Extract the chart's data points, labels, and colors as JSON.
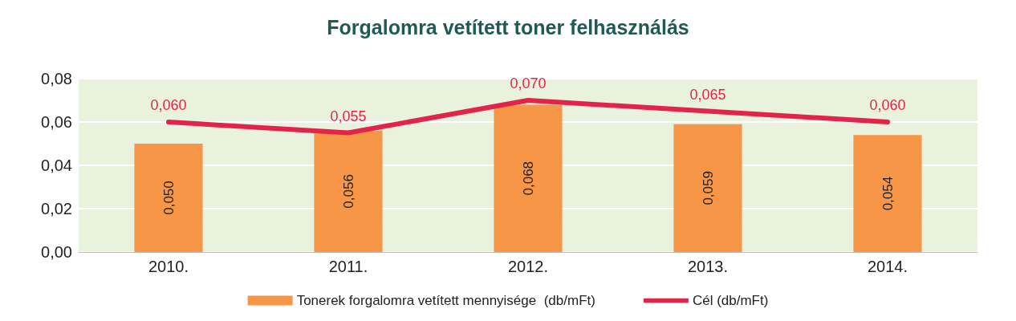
{
  "chart_data": {
    "type": "bar",
    "title": "Forgalomra vetített toner felhasználás",
    "categories": [
      "2010.",
      "2011.",
      "2012.",
      "2013.",
      "2014."
    ],
    "series": [
      {
        "name": "Tonerek forgalomra vetített mennyisége  (db/mFt)",
        "color": "#f79646",
        "values": [
          0.05,
          0.056,
          0.068,
          0.059,
          0.054
        ],
        "value_labels": [
          "0,050",
          "0,056",
          "0,068",
          "0,059",
          "0,054"
        ]
      },
      {
        "name": "Cél (db/mFt)",
        "type": "line",
        "color": "#e3234a",
        "values": [
          0.06,
          0.055,
          0.07,
          0.065,
          0.06
        ],
        "value_labels": [
          "0,060",
          "0,055",
          "0,070",
          "0,065",
          "0,060"
        ]
      }
    ],
    "ylim": [
      0,
      0.08
    ],
    "yticks": [
      {
        "value": 0,
        "label": "0,00"
      },
      {
        "value": 0.02,
        "label": "0,02"
      },
      {
        "value": 0.04,
        "label": "0,04"
      },
      {
        "value": 0.06,
        "label": "0,06"
      },
      {
        "value": 0.08,
        "label": "0,08"
      }
    ],
    "grid": "y",
    "legend": "bottom",
    "marker": "none",
    "line_style": "solid"
  }
}
